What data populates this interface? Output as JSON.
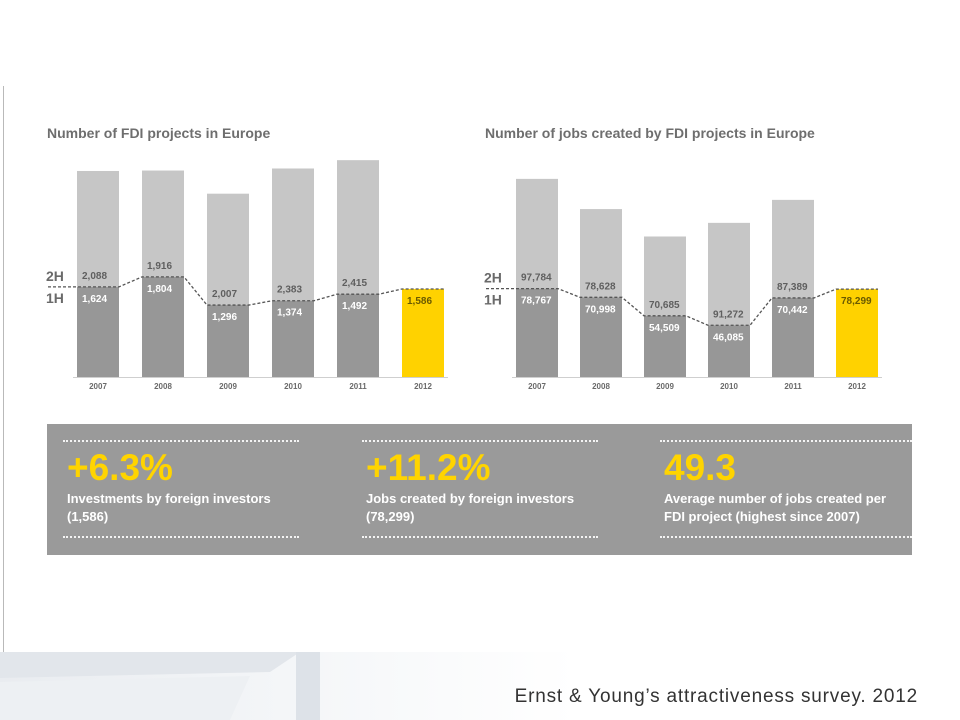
{
  "colors": {
    "bar_top": "#c6c6c6",
    "bar_bottom": "#979797",
    "bar_highlight": "#ffd200",
    "label_dark": "#5f5f5f",
    "label_light": "#ffffff",
    "stats_bg": "#9a9a9a",
    "stats_accent": "#ffd400"
  },
  "chart_data": [
    {
      "type": "bar",
      "title": "Number of FDI projects in Europe",
      "categories": [
        "2007",
        "2008",
        "2009",
        "2010",
        "2011",
        "2012"
      ],
      "series": [
        {
          "name": "1H",
          "values": [
            1624,
            1804,
            1296,
            1374,
            1492,
            1586
          ],
          "labels": [
            "1,624",
            "1,804",
            "1,296",
            "1,374",
            "1,492",
            "1,586"
          ]
        },
        {
          "name": "2H",
          "values": [
            2088,
            1916,
            2007,
            2383,
            2415,
            null
          ],
          "labels": [
            "2,088",
            "1,916",
            "2,007",
            "2,383",
            "2,415",
            ""
          ]
        }
      ],
      "highlight_category": "2012",
      "stacked": true,
      "ylim": [
        0,
        4000
      ]
    },
    {
      "type": "bar",
      "title": "Number of jobs created by FDI projects in Europe",
      "categories": [
        "2007",
        "2008",
        "2009",
        "2010",
        "2011",
        "2012"
      ],
      "series": [
        {
          "name": "1H",
          "values": [
            78767,
            70998,
            54509,
            46085,
            70442,
            78299
          ],
          "labels": [
            "78,767",
            "70,998",
            "54,509",
            "46,085",
            "70,442",
            "78,299"
          ]
        },
        {
          "name": "2H",
          "values": [
            97784,
            78628,
            70685,
            91272,
            87389,
            null
          ],
          "labels": [
            "97,784",
            "78,628",
            "70,685",
            "91,272",
            "87,389",
            ""
          ]
        }
      ],
      "highlight_category": "2012",
      "stacked": true,
      "ylim": [
        0,
        180000
      ]
    }
  ],
  "stats": [
    {
      "value": "+6.3%",
      "line1": "Investments by foreign investors",
      "line2": "(1,586)"
    },
    {
      "value": "+11.2%",
      "line1": "Jobs created by foreign investors",
      "line2": "(78,299)"
    },
    {
      "value": "49.3",
      "line1": "Average number of jobs created per",
      "line2": "FDI project (highest since 2007)"
    }
  ],
  "footer": {
    "credit": "Ernst & Young’s attractiveness survey. 2012"
  }
}
